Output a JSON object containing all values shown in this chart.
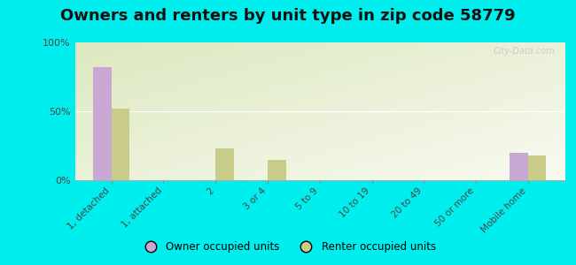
{
  "title": "Owners and renters by unit type in zip code 58779",
  "categories": [
    "1, detached",
    "1, attached",
    "2",
    "3 or 4",
    "5 to 9",
    "10 to 19",
    "20 to 49",
    "50 or more",
    "Mobile home"
  ],
  "owner_values": [
    82,
    0,
    0,
    0,
    0,
    0,
    0,
    0,
    20
  ],
  "renter_values": [
    52,
    0,
    23,
    15,
    0,
    0,
    0,
    0,
    18
  ],
  "owner_color": "#c9a8d4",
  "renter_color": "#c8cc88",
  "background_color": "#00eeee",
  "chart_bg_color1": "#dde8c0",
  "chart_bg_color2": "#f5f8ec",
  "ylim": [
    0,
    100
  ],
  "yticks": [
    0,
    50,
    100
  ],
  "ytick_labels": [
    "0%",
    "50%",
    "100%"
  ],
  "bar_width": 0.35,
  "title_fontsize": 13,
  "watermark": "City-Data.com"
}
